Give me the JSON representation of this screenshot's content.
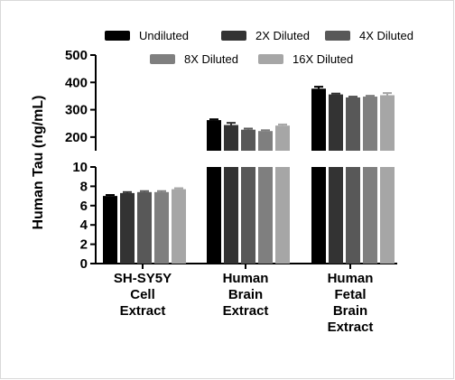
{
  "chart_data": {
    "type": "bar",
    "ylabel": "Human Tau (ng/mL)",
    "y_axis_break": {
      "lower_range": [
        0,
        10
      ],
      "upper_range": [
        200,
        500
      ]
    },
    "yticks_lower": [
      "0",
      "2",
      "4",
      "6",
      "8",
      "10"
    ],
    "yticks_upper": [
      "200",
      "300",
      "400",
      "500"
    ],
    "categories": [
      [
        "SH-SY5Y",
        "Cell",
        "Extract"
      ],
      [
        "Human",
        "Brain",
        "Extract"
      ],
      [
        "Human",
        "Fetal",
        "Brain",
        "Extract"
      ]
    ],
    "series": [
      {
        "name": "Undiluted",
        "color": "#000000",
        "values": [
          7.0,
          262,
          377
        ],
        "errors": [
          0.1,
          3,
          7
        ]
      },
      {
        "name": "2X Diluted",
        "color": "#333333",
        "values": [
          7.3,
          244,
          356
        ],
        "errors": [
          0.1,
          8,
          3
        ]
      },
      {
        "name": "4X Diluted",
        "color": "#585858",
        "values": [
          7.4,
          227,
          345
        ],
        "errors": [
          0.1,
          4,
          3
        ]
      },
      {
        "name": "8X Diluted",
        "color": "#7f7f7f",
        "values": [
          7.4,
          222,
          348
        ],
        "errors": [
          0.1,
          3,
          3
        ]
      },
      {
        "name": "16X Diluted",
        "color": "#a6a6a6",
        "values": [
          7.7,
          242,
          353
        ],
        "errors": [
          0.1,
          4,
          8
        ]
      }
    ],
    "legend_position": "top"
  }
}
